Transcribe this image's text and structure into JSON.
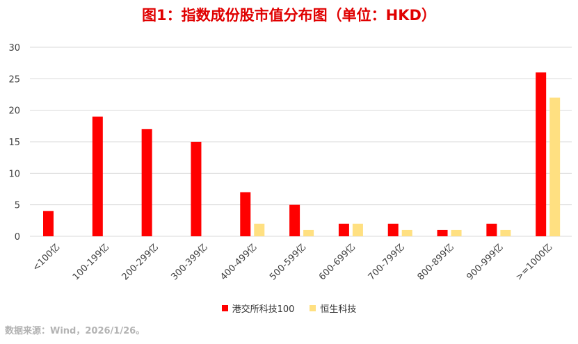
{
  "title": "图1：指数成份股市值分布图（单位：HKD）",
  "source": "数据来源：Wind，2026/1/26。",
  "colors": {
    "series1": "#ff0000",
    "series2": "#ffe081",
    "grid": "#d9d9d9",
    "axis_text": "#404040"
  },
  "chart_data": {
    "type": "bar",
    "categories": [
      "<100亿",
      "100-199亿",
      "200-299亿",
      "300-399亿",
      "400-499亿",
      "500-599亿",
      "600-699亿",
      "700-799亿",
      "800-899亿",
      "900-999亿",
      ">=1000亿"
    ],
    "series": [
      {
        "name": "港交所科技100",
        "values": [
          4,
          19,
          17,
          15,
          7,
          5,
          2,
          2,
          1,
          2,
          26
        ]
      },
      {
        "name": "恒生科技",
        "values": [
          0,
          0,
          0,
          0,
          2,
          1,
          2,
          1,
          1,
          1,
          22
        ]
      }
    ],
    "ylim": [
      0,
      30
    ],
    "yticks": [
      0,
      5,
      10,
      15,
      20,
      25,
      30
    ],
    "grid": true,
    "legend_position": "bottom"
  }
}
